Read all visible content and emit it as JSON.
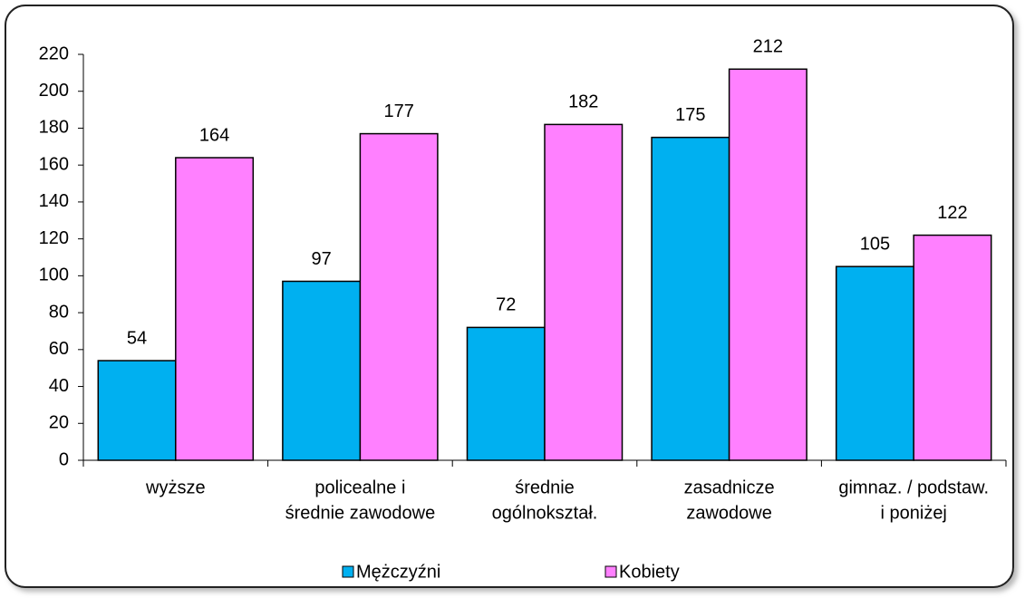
{
  "chart_data": {
    "type": "bar",
    "categories": [
      [
        "wyższe"
      ],
      [
        "policealne i",
        "średnie zawodowe"
      ],
      [
        "średnie",
        "ogólnokształ."
      ],
      [
        "zasadnicze",
        "zawodowe"
      ],
      [
        "gimnaz. / podstaw.",
        "i poniżej"
      ]
    ],
    "series": [
      {
        "name": "Mężczyźni",
        "color": "#00b0f0",
        "values": [
          54,
          97,
          72,
          175,
          105
        ]
      },
      {
        "name": "Kobiety",
        "color": "#ff80ff",
        "values": [
          164,
          177,
          182,
          212,
          122
        ]
      }
    ],
    "ylim": [
      0,
      220
    ],
    "yticks": [
      0,
      20,
      40,
      60,
      80,
      100,
      120,
      140,
      160,
      180,
      200,
      220
    ],
    "legend": "bottom"
  }
}
